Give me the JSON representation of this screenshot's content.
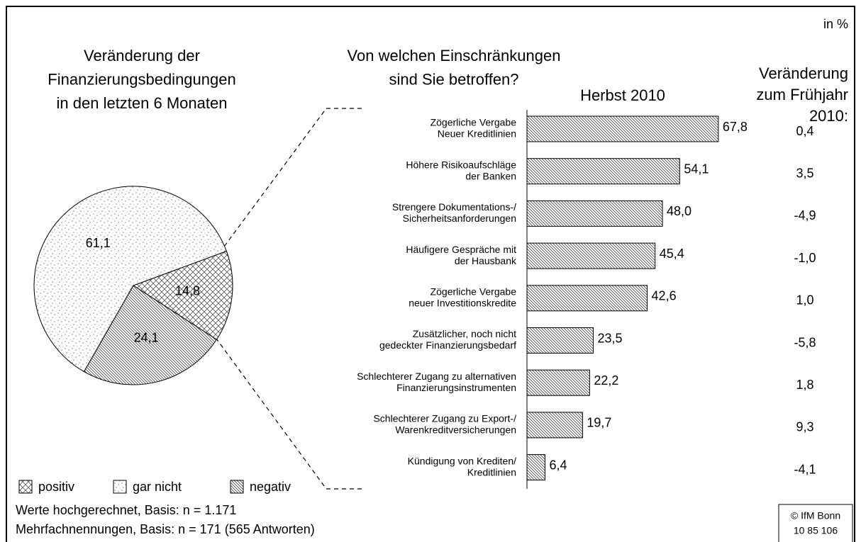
{
  "unit_label": "in %",
  "footer": [
    "Werte hochgerechnet, Basis: n = 1.171",
    "Mehrfachnennungen, Basis: n = 171 (565 Antworten)"
  ],
  "credit": [
    "© IfM Bonn",
    "10 85 106"
  ],
  "chart_data": [
    {
      "type": "pie",
      "title": [
        "Veränderung der",
        "Finanzierungsbedingungen",
        "in den letzten 6 Monaten"
      ],
      "categories": [
        "positiv",
        "gar nicht",
        "negativ"
      ],
      "values": [
        14.8,
        61.1,
        24.1
      ],
      "value_labels": [
        "14,8",
        "61,1",
        "24,1"
      ],
      "patterns": [
        "cross",
        "dots",
        "hatch"
      ]
    },
    {
      "type": "bar",
      "title": [
        "Von welchen Einschränkungen",
        "sind Sie betroffen?"
      ],
      "subtitle": "Herbst 2010",
      "categories": [
        [
          "Zögerliche Vergabe",
          "Neuer Kreditlinien"
        ],
        [
          "Höhere Risikoaufschläge",
          "der Banken"
        ],
        [
          "Strengere Dokumentations-/",
          "Sicherheitsanforderungen"
        ],
        [
          "Häufigere Gespräche mit",
          "der Hausbank"
        ],
        [
          "Zögerliche Vergabe",
          "neuer Investitionskredite"
        ],
        [
          "Zusätzlicher, noch nicht",
          "gedeckter Finanzierungsbedarf"
        ],
        [
          "Schlechterer Zugang zu alternativen",
          "Finanzierungsinstrumenten"
        ],
        [
          "Schlechterer Zugang zu Export-/",
          "Warenkreditversicherungen"
        ],
        [
          "Kündigung von Krediten/",
          "Kreditlinien"
        ]
      ],
      "values": [
        67.8,
        54.1,
        48.0,
        45.4,
        42.6,
        23.5,
        22.2,
        19.7,
        6.4
      ],
      "value_labels": [
        "67,8",
        "54,1",
        "48,0",
        "45,4",
        "42,6",
        "23,5",
        "22,2",
        "19,7",
        "6,4"
      ],
      "pattern": "hatch",
      "change": {
        "title": [
          "Veränderung",
          "zum Frühjahr",
          "2010:"
        ],
        "values": [
          0.4,
          3.5,
          -4.9,
          -1.0,
          1.0,
          -5.8,
          1.8,
          9.3,
          -4.1
        ],
        "value_labels": [
          "0,4",
          "3,5",
          "-4,9",
          "-1,0",
          "1,0",
          "-5,8",
          "1,8",
          "9,3",
          "-4,1"
        ]
      }
    }
  ]
}
